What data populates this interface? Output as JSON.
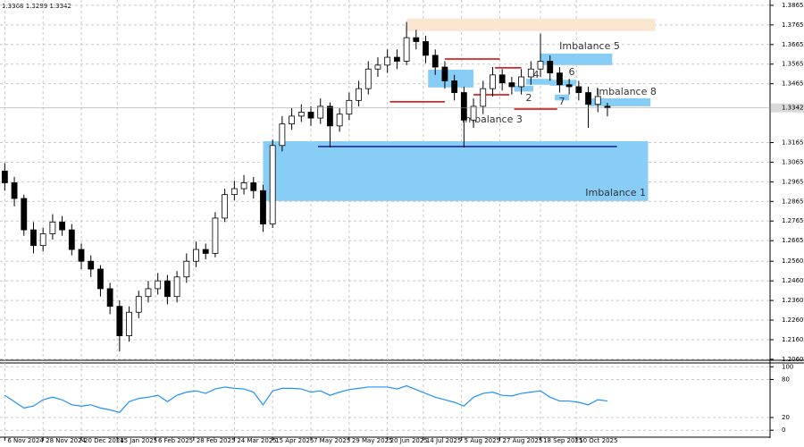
{
  "chart_data": [
    {
      "type": "candlestick",
      "color": "#000000",
      "x": [
        0,
        4,
        8,
        12,
        16,
        20,
        24,
        28,
        32,
        36,
        40,
        44,
        48,
        52,
        56,
        60,
        64,
        68,
        72,
        76,
        80,
        84,
        88,
        92,
        96,
        100,
        104,
        108,
        112,
        116,
        120,
        124,
        128,
        132,
        136,
        140,
        144,
        148,
        152,
        156,
        160,
        164,
        168,
        172,
        176,
        180,
        184,
        188,
        192,
        196,
        200,
        204,
        208,
        212,
        216,
        220,
        224,
        228,
        232,
        236,
        240,
        244,
        248,
        252
      ],
      "open": [
        1.302,
        1.296,
        1.288,
        1.272,
        1.264,
        1.27,
        1.276,
        1.272,
        1.262,
        1.256,
        1.252,
        1.242,
        1.233,
        1.218,
        1.23,
        1.238,
        1.242,
        1.246,
        1.238,
        1.248,
        1.256,
        1.262,
        1.26,
        1.278,
        1.29,
        1.293,
        1.296,
        1.292,
        1.275,
        1.315,
        1.326,
        1.33,
        1.332,
        1.329,
        1.335,
        1.325,
        1.331,
        1.338,
        1.344,
        1.354,
        1.356,
        1.36,
        1.358,
        1.37,
        1.368,
        1.361,
        1.355,
        1.348,
        1.342,
        1.328,
        1.335,
        1.344,
        1.351,
        1.347,
        1.345,
        1.35,
        1.354,
        1.358,
        1.352,
        1.346,
        1.345,
        1.342,
        1.336,
        1.335
      ],
      "high": [
        1.306,
        1.299,
        1.29,
        1.276,
        1.273,
        1.28,
        1.279,
        1.275,
        1.265,
        1.259,
        1.254,
        1.245,
        1.236,
        1.233,
        1.241,
        1.246,
        1.25,
        1.249,
        1.251,
        1.26,
        1.266,
        1.265,
        1.281,
        1.293,
        1.297,
        1.3,
        1.299,
        1.295,
        1.318,
        1.33,
        1.334,
        1.336,
        1.335,
        1.339,
        1.337,
        1.334,
        1.342,
        1.348,
        1.358,
        1.36,
        1.364,
        1.364,
        1.378,
        1.374,
        1.371,
        1.364,
        1.358,
        1.351,
        1.345,
        1.339,
        1.348,
        1.355,
        1.354,
        1.35,
        1.354,
        1.358,
        1.372,
        1.361,
        1.355,
        1.349,
        1.348,
        1.345,
        1.344,
        1.3368
      ],
      "low": [
        1.292,
        1.284,
        1.269,
        1.26,
        1.261,
        1.267,
        1.269,
        1.259,
        1.252,
        1.248,
        1.238,
        1.229,
        1.21,
        1.215,
        1.227,
        1.235,
        1.239,
        1.234,
        1.235,
        1.245,
        1.253,
        1.257,
        1.258,
        1.276,
        1.287,
        1.29,
        1.288,
        1.271,
        1.273,
        1.312,
        1.323,
        1.327,
        1.325,
        1.326,
        1.314,
        1.322,
        1.328,
        1.335,
        1.341,
        1.35,
        1.352,
        1.354,
        1.356,
        1.364,
        1.357,
        1.351,
        1.344,
        1.338,
        1.314,
        1.324,
        1.331,
        1.34,
        1.343,
        1.341,
        1.341,
        1.346,
        1.35,
        1.348,
        1.342,
        1.341,
        1.338,
        1.324,
        1.332,
        1.3299
      ],
      "close": [
        1.296,
        1.288,
        1.272,
        1.264,
        1.27,
        1.276,
        1.272,
        1.262,
        1.256,
        1.252,
        1.242,
        1.233,
        1.218,
        1.23,
        1.238,
        1.242,
        1.246,
        1.238,
        1.248,
        1.256,
        1.262,
        1.26,
        1.278,
        1.29,
        1.293,
        1.296,
        1.292,
        1.275,
        1.315,
        1.326,
        1.33,
        1.332,
        1.329,
        1.335,
        1.325,
        1.331,
        1.338,
        1.344,
        1.354,
        1.356,
        1.36,
        1.358,
        1.37,
        1.368,
        1.361,
        1.355,
        1.348,
        1.342,
        1.328,
        1.335,
        1.344,
        1.351,
        1.347,
        1.345,
        1.35,
        1.354,
        1.358,
        1.352,
        1.346,
        1.345,
        1.342,
        1.336,
        1.34,
        1.3342
      ],
      "xlim": [
        -2,
        320
      ],
      "ylim": [
        1.2055,
        1.3892
      ],
      "xticks": [
        {
          "value": 0,
          "label": "6 Nov 2024"
        },
        {
          "value": 16,
          "label": "28 Nov 2024"
        },
        {
          "value": 32,
          "label": "20 Dec 2024"
        },
        {
          "value": 47,
          "label": "15 Jan 2025"
        },
        {
          "value": 63,
          "label": "6 Feb 2025"
        },
        {
          "value": 79,
          "label": "28 Feb 2025"
        },
        {
          "value": 96,
          "label": "24 Mar 2025"
        },
        {
          "value": 112,
          "label": "15 Apr 2025"
        },
        {
          "value": 128,
          "label": "7 May 2025"
        },
        {
          "value": 144,
          "label": "29 May 2025"
        },
        {
          "value": 160,
          "label": "20 Jun 2025"
        },
        {
          "value": 175,
          "label": "14 Jul 2025"
        },
        {
          "value": 191,
          "label": "5 Aug 2025"
        },
        {
          "value": 207,
          "label": "27 Aug 2025"
        },
        {
          "value": 224,
          "label": "18 Sep 2025"
        },
        {
          "value": 239,
          "label": "10 Oct 2025"
        }
      ],
      "yticks": [
        1.3865,
        1.3765,
        1.3665,
        1.3565,
        1.3465,
        1.3165,
        1.3065,
        1.2965,
        1.2865,
        1.2765,
        1.2665,
        {
          "value": 1.256,
          "label": "1.2560"
        },
        {
          "value": 1.246,
          "label": "1.2460"
        },
        {
          "value": 1.236,
          "label": "1.2360"
        },
        {
          "value": 1.226,
          "label": "1.2260"
        },
        {
          "value": 1.216,
          "label": "1.2160"
        },
        {
          "value": 1.206,
          "label": "1.2060"
        }
      ],
      "grid": true,
      "zones": [
        {
          "label": "Imbalance 1",
          "x": [
            108,
            269
          ],
          "y": [
            1.2867,
            1.3172
          ],
          "color": "#87cdf5"
        },
        {
          "x": [
            168,
            272
          ],
          "y": [
            1.3733,
            1.3797
          ],
          "color": "#fbe6d2"
        },
        {
          "label": "Imbalance 5",
          "x": [
            224,
            254
          ],
          "y": [
            1.356,
            1.3619
          ],
          "color": "#87cdf5"
        },
        {
          "label": "Imbalance 8",
          "x": [
            244,
            270
          ],
          "y": [
            1.335,
            1.3391
          ],
          "color": "#87cdf5"
        },
        {
          "label": "Imbalance 3",
          "x": [
            177,
            196
          ],
          "y": [
            1.3446,
            1.3537
          ],
          "color": "#87cdf5"
        },
        {
          "label": "2",
          "x": [
            213,
            221
          ],
          "y": [
            1.3425,
            1.3455
          ],
          "color": "#87cdf5"
        },
        {
          "label": "4",
          "x": [
            218,
            229
          ],
          "y": [
            1.346,
            1.349
          ],
          "color": "#87cdf5"
        },
        {
          "label": "6",
          "x": [
            228,
            239
          ],
          "y": [
            1.3455,
            1.3485
          ],
          "color": "#87cdf5"
        },
        {
          "label": "7",
          "x": [
            230,
            236
          ],
          "y": [
            1.338,
            1.341
          ],
          "color": "#87cdf5"
        }
      ],
      "levels": [
        {
          "y": 1.3373,
          "x": [
            161,
            184
          ],
          "color": "#d40000"
        },
        {
          "y": 1.3591,
          "x": [
            184,
            207
          ],
          "color": "#d40000"
        },
        {
          "y": 1.3409,
          "x": [
            196,
            211
          ],
          "color": "#d40000"
        },
        {
          "y": 1.3546,
          "x": [
            205,
            216
          ],
          "color": "#d40000"
        },
        {
          "y": 1.3336,
          "x": [
            213,
            231
          ],
          "color": "#d40000"
        },
        {
          "y": 1.3145,
          "x": [
            131,
            256
          ],
          "color": "#1a1aa0"
        }
      ]
    },
    {
      "type": "line",
      "color": "#1e90ff",
      "x": [
        0,
        4,
        8,
        12,
        16,
        20,
        24,
        28,
        32,
        36,
        40,
        44,
        48,
        52,
        56,
        60,
        64,
        68,
        72,
        76,
        80,
        84,
        88,
        92,
        96,
        100,
        104,
        108,
        112,
        116,
        120,
        124,
        128,
        132,
        136,
        140,
        144,
        148,
        152,
        156,
        160,
        164,
        168,
        172,
        176,
        180,
        184,
        188,
        192,
        196,
        200,
        204,
        208,
        212,
        216,
        220,
        224,
        228,
        232,
        236,
        240,
        244,
        248,
        252
      ],
      "values": [
        55,
        45,
        35,
        38,
        48,
        52,
        48,
        40,
        38,
        40,
        35,
        32,
        28,
        45,
        50,
        52,
        55,
        45,
        55,
        60,
        62,
        58,
        65,
        68,
        66,
        65,
        60,
        40,
        62,
        66,
        66,
        65,
        60,
        62,
        55,
        60,
        64,
        66,
        68,
        68,
        68,
        65,
        70,
        64,
        58,
        52,
        48,
        44,
        38,
        52,
        58,
        60,
        55,
        54,
        58,
        60,
        62,
        52,
        46,
        46,
        44,
        40,
        48,
        46
      ],
      "xlim": [
        -2,
        320
      ],
      "ylim": [
        -11,
        106
      ],
      "yticks": [
        0,
        20,
        80,
        100
      ],
      "grid": true
    }
  ]
}
